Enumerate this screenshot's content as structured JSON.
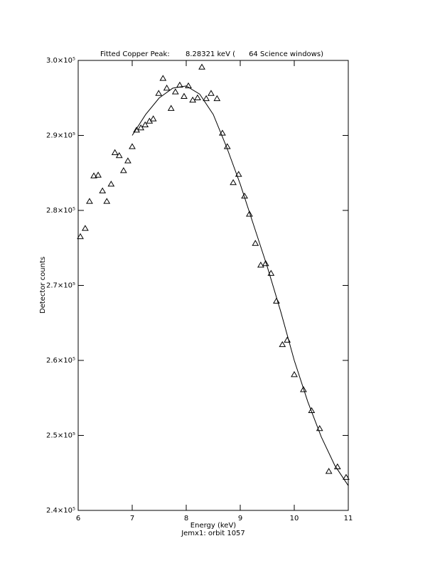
{
  "chart_data": {
    "type": "scatter",
    "title": "Fitted Copper Peak:       8.28321 keV (      64 Science windows)",
    "x_label": "Energy (keV)",
    "subtitle": "Jemx1: orbit 1057",
    "y_label": "Detector counts",
    "xlim": [
      6,
      11
    ],
    "xticks": [
      6,
      7,
      8,
      9,
      10,
      11
    ],
    "ylim": [
      240000,
      300000
    ],
    "yticks": [
      {
        "value": 240000,
        "label": "2.4×10⁵"
      },
      {
        "value": 250000,
        "label": "2.5×10⁵"
      },
      {
        "value": 260000,
        "label": "2.6×10⁵"
      },
      {
        "value": 270000,
        "label": "2.7×10⁵"
      },
      {
        "value": 280000,
        "label": "2.8×10⁵"
      },
      {
        "value": 290000,
        "label": "2.9×10⁵"
      },
      {
        "value": 300000,
        "label": "3.0×10⁵"
      }
    ],
    "series": [
      {
        "type": "scatter",
        "marker": "triangle",
        "color": "#000000",
        "x": [
          6.04,
          6.13,
          6.21,
          6.29,
          6.37,
          6.45,
          6.53,
          6.61,
          6.68,
          6.76,
          6.84,
          6.92,
          7.0,
          7.08,
          7.16,
          7.24,
          7.32,
          7.39,
          7.49,
          7.57,
          7.64,
          7.72,
          7.8,
          7.88,
          7.96,
          8.04,
          8.12,
          8.21,
          8.29,
          8.37,
          8.46,
          8.57,
          8.67,
          8.76,
          8.87,
          8.97,
          9.08,
          9.17,
          9.28,
          9.38,
          9.47,
          9.57,
          9.67,
          9.78,
          9.87,
          10.0,
          10.17,
          10.32,
          10.47,
          10.64,
          10.8,
          10.96
        ],
        "values": [
          276500,
          277600,
          281200,
          284600,
          284700,
          282600,
          281200,
          283500,
          287700,
          287300,
          285300,
          286600,
          288500,
          290700,
          291000,
          291400,
          291900,
          292200,
          295600,
          297600,
          296300,
          293600,
          295800,
          296700,
          295200,
          296600,
          294700,
          295000,
          299100,
          294900,
          295600,
          294900,
          290300,
          288500,
          283700,
          284800,
          281900,
          279500,
          275600,
          272700,
          272900,
          271600,
          267900,
          262100,
          262700,
          258100,
          256100,
          253300,
          250900,
          245200,
          245800,
          244400
        ]
      },
      {
        "type": "line",
        "color": "#000000",
        "x": [
          7.0,
          7.25,
          7.5,
          7.75,
          8.0,
          8.25,
          8.5,
          8.75,
          9.0,
          9.25,
          9.5,
          9.75,
          10.0,
          10.25,
          10.5,
          10.75,
          11.0
        ],
        "values": [
          290000,
          292800,
          295000,
          296300,
          296600,
          295500,
          292800,
          288400,
          283500,
          278000,
          272500,
          266500,
          260000,
          254500,
          249800,
          246000,
          243300
        ]
      }
    ]
  }
}
